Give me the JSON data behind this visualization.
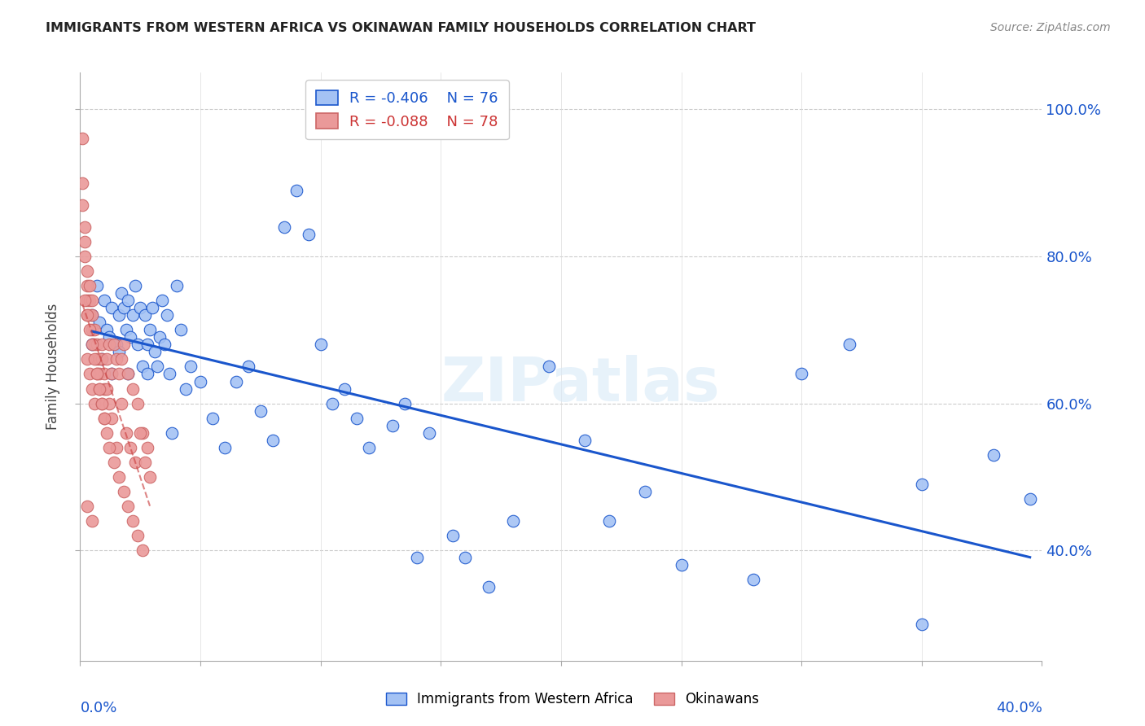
{
  "title": "IMMIGRANTS FROM WESTERN AFRICA VS OKINAWAN FAMILY HOUSEHOLDS CORRELATION CHART",
  "source": "Source: ZipAtlas.com",
  "ylabel": "Family Households",
  "yaxis_labels": [
    "100.0%",
    "80.0%",
    "60.0%",
    "40.0%"
  ],
  "yaxis_values": [
    1.0,
    0.8,
    0.6,
    0.4
  ],
  "legend_blue_r": "R = -0.406",
  "legend_blue_n": "N = 76",
  "legend_pink_r": "R = -0.088",
  "legend_pink_n": "N = 78",
  "blue_color": "#a4c2f4",
  "pink_color": "#ea9999",
  "trendline_blue": "#1a56cc",
  "trendline_pink": "#cc4444",
  "watermark": "ZIPatlas",
  "xlim": [
    0.0,
    0.4
  ],
  "ylim": [
    0.25,
    1.05
  ],
  "blue_scatter_x": [
    0.005,
    0.005,
    0.007,
    0.008,
    0.009,
    0.01,
    0.011,
    0.012,
    0.013,
    0.013,
    0.015,
    0.016,
    0.016,
    0.017,
    0.018,
    0.019,
    0.02,
    0.02,
    0.021,
    0.022,
    0.023,
    0.024,
    0.025,
    0.026,
    0.027,
    0.028,
    0.028,
    0.029,
    0.03,
    0.031,
    0.032,
    0.033,
    0.034,
    0.035,
    0.036,
    0.037,
    0.038,
    0.04,
    0.042,
    0.044,
    0.046,
    0.05,
    0.055,
    0.06,
    0.065,
    0.07,
    0.075,
    0.08,
    0.085,
    0.09,
    0.095,
    0.1,
    0.105,
    0.11,
    0.115,
    0.12,
    0.13,
    0.135,
    0.14,
    0.145,
    0.155,
    0.16,
    0.17,
    0.18,
    0.195,
    0.21,
    0.22,
    0.235,
    0.25,
    0.28,
    0.3,
    0.32,
    0.35,
    0.38,
    0.395,
    0.35
  ],
  "blue_scatter_y": [
    0.68,
    0.72,
    0.76,
    0.71,
    0.66,
    0.74,
    0.7,
    0.69,
    0.73,
    0.64,
    0.68,
    0.72,
    0.67,
    0.75,
    0.73,
    0.7,
    0.64,
    0.74,
    0.69,
    0.72,
    0.76,
    0.68,
    0.73,
    0.65,
    0.72,
    0.68,
    0.64,
    0.7,
    0.73,
    0.67,
    0.65,
    0.69,
    0.74,
    0.68,
    0.72,
    0.64,
    0.56,
    0.76,
    0.7,
    0.62,
    0.65,
    0.63,
    0.58,
    0.54,
    0.63,
    0.65,
    0.59,
    0.55,
    0.84,
    0.89,
    0.83,
    0.68,
    0.6,
    0.62,
    0.58,
    0.54,
    0.57,
    0.6,
    0.39,
    0.56,
    0.42,
    0.39,
    0.35,
    0.44,
    0.65,
    0.55,
    0.44,
    0.48,
    0.38,
    0.36,
    0.64,
    0.68,
    0.49,
    0.53,
    0.47,
    0.3
  ],
  "pink_scatter_x": [
    0.001,
    0.001,
    0.001,
    0.002,
    0.002,
    0.002,
    0.003,
    0.003,
    0.003,
    0.003,
    0.004,
    0.004,
    0.004,
    0.005,
    0.005,
    0.005,
    0.006,
    0.006,
    0.007,
    0.007,
    0.008,
    0.008,
    0.009,
    0.009,
    0.01,
    0.01,
    0.011,
    0.012,
    0.013,
    0.014,
    0.015,
    0.016,
    0.017,
    0.018,
    0.02,
    0.022,
    0.024,
    0.026,
    0.028,
    0.003,
    0.004,
    0.005,
    0.006,
    0.007,
    0.008,
    0.009,
    0.01,
    0.011,
    0.012,
    0.013,
    0.015,
    0.017,
    0.019,
    0.021,
    0.023,
    0.025,
    0.027,
    0.029,
    0.002,
    0.003,
    0.004,
    0.005,
    0.006,
    0.007,
    0.008,
    0.009,
    0.01,
    0.011,
    0.012,
    0.014,
    0.016,
    0.018,
    0.02,
    0.022,
    0.024,
    0.026,
    0.003,
    0.005
  ],
  "pink_scatter_y": [
    0.96,
    0.9,
    0.87,
    0.84,
    0.82,
    0.8,
    0.78,
    0.76,
    0.74,
    0.72,
    0.76,
    0.74,
    0.72,
    0.7,
    0.72,
    0.74,
    0.7,
    0.68,
    0.68,
    0.66,
    0.66,
    0.64,
    0.66,
    0.68,
    0.64,
    0.62,
    0.66,
    0.68,
    0.64,
    0.68,
    0.66,
    0.64,
    0.66,
    0.68,
    0.64,
    0.62,
    0.6,
    0.56,
    0.54,
    0.66,
    0.64,
    0.62,
    0.6,
    0.64,
    0.62,
    0.6,
    0.58,
    0.62,
    0.6,
    0.58,
    0.54,
    0.6,
    0.56,
    0.54,
    0.52,
    0.56,
    0.52,
    0.5,
    0.74,
    0.72,
    0.7,
    0.68,
    0.66,
    0.64,
    0.62,
    0.6,
    0.58,
    0.56,
    0.54,
    0.52,
    0.5,
    0.48,
    0.46,
    0.44,
    0.42,
    0.4,
    0.46,
    0.44
  ]
}
